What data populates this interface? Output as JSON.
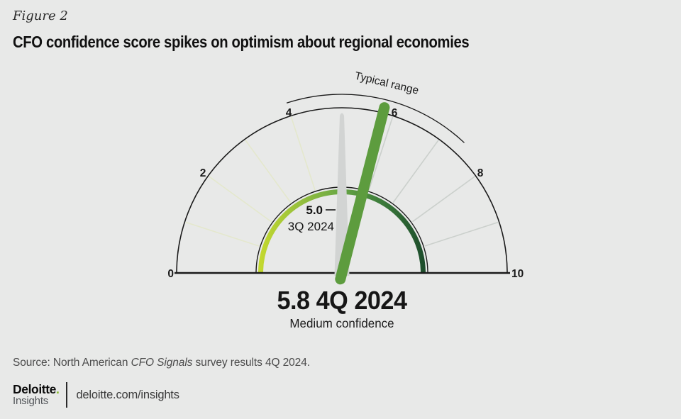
{
  "figure_label": "Figure 2",
  "title": "CFO confidence score spikes on optimism about regional economies",
  "source": {
    "prefix": "Source: North American ",
    "italic": "CFO Signals",
    "suffix": " survey results 4Q 2024."
  },
  "footer": {
    "brand": "Deloitte",
    "brand_dot": ".",
    "brand_sub": "Insights",
    "link": "deloitte.com/insights"
  },
  "chart_data": {
    "type": "gauge",
    "title": "CFO confidence score",
    "axis": {
      "min": 0,
      "max": 10,
      "tick_values": [
        0,
        2,
        4,
        6,
        8,
        10
      ],
      "tick_labels": [
        "0",
        "2",
        "4",
        "6",
        "8",
        "10"
      ]
    },
    "typical_range": {
      "label": "Typical range",
      "from": 4.0,
      "to": 7.4
    },
    "current": {
      "value": 5.8,
      "period": "4Q 2024",
      "label": "5.8 4Q 2024",
      "confidence_label": "Medium confidence",
      "needle_color": "#5d9c3e"
    },
    "previous": {
      "value": 5.0,
      "label": "5.0",
      "period": "3Q 2024",
      "needle_color": "#d2d4d3"
    },
    "band_gradient": [
      "#c3d82f",
      "#8fbc3f",
      "#67a644",
      "#3f7f3c",
      "#1d4e2c"
    ],
    "spokes": {
      "left_values": [
        1,
        2,
        3,
        4
      ],
      "right_values": [
        6,
        7,
        8,
        9
      ],
      "left_color": "#e4e8cd",
      "right_color": "#cbd0cc"
    },
    "background_color": "#e8e9e8"
  }
}
